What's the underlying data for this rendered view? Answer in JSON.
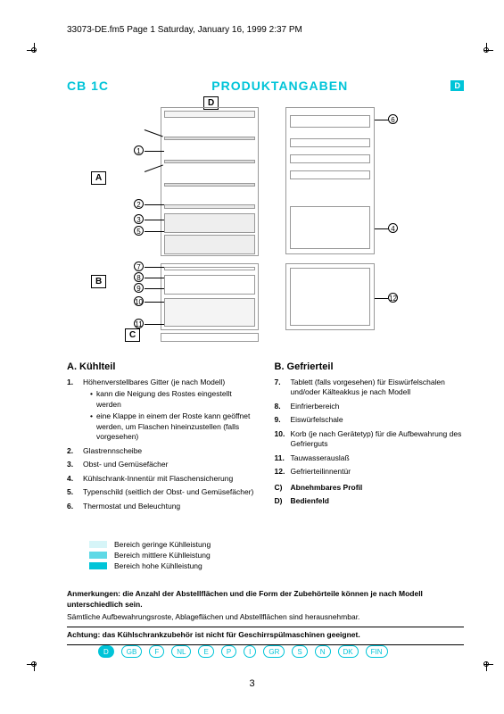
{
  "header": "33073-DE.fm5  Page 1  Saturday, January 16, 1999  2:37 PM",
  "model": "CB 1C",
  "title": "PRODUKTANGABEN",
  "badge": "D",
  "diagram": {
    "labels": {
      "A": "A",
      "B": "B",
      "C": "C",
      "D": "D"
    },
    "callouts": [
      "1",
      "2",
      "3",
      "4",
      "5",
      "6",
      "7",
      "8",
      "9",
      "10",
      "11",
      "12"
    ]
  },
  "sectionA": {
    "heading": "A.    Kühlteil",
    "items": [
      {
        "n": "1.",
        "t": "Höhenverstellbares Gitter (je nach Modell)",
        "sub": [
          "kann die Neigung des Rostes eingestellt werden",
          "eine Klappe in einem der Roste kann geöffnet werden, um Flaschen hineinzustellen (falls vorgesehen)"
        ]
      },
      {
        "n": "2.",
        "t": "Glastrennscheibe"
      },
      {
        "n": "3.",
        "t": "Obst- und Gemüsefächer"
      },
      {
        "n": "4.",
        "t": "Kühlschrank-Innentür mit Flaschensicherung"
      },
      {
        "n": "5.",
        "t": "Typenschild (seitlich der Obst- und Gemüsefächer)"
      },
      {
        "n": "6.",
        "t": "Thermostat und Beleuchtung"
      }
    ]
  },
  "sectionB": {
    "heading": "B.    Gefrierteil",
    "items": [
      {
        "n": "7.",
        "t": "Tablett (falls vorgesehen) für Eiswürfelschalen und/oder Kälteakkus je nach Modell"
      },
      {
        "n": "8.",
        "t": "Einfrierbereich"
      },
      {
        "n": "9.",
        "t": "Eiswürfelschale"
      },
      {
        "n": "10.",
        "t": "Korb (je nach Gerätetyp) für die Aufbewahrung des Gefrierguts"
      },
      {
        "n": "11.",
        "t": "Tauwasserauslaß"
      },
      {
        "n": "12.",
        "t": "Gefrierteilinnentür"
      }
    ],
    "extra": [
      {
        "n": "C)",
        "t": "Abnehmbares Profil"
      },
      {
        "n": "D)",
        "t": "Bedienfeld"
      }
    ]
  },
  "legend": [
    {
      "color": "#d6f5f8",
      "t": "Bereich geringe Kühlleistung"
    },
    {
      "color": "#5fd9e6",
      "t": "Bereich mittlere Kühlleistung"
    },
    {
      "color": "#00c4d8",
      "t": "Bereich hohe Kühlleistung"
    }
  ],
  "notes": {
    "l1": "Anmerkungen: die Anzahl der Abstellflächen und die Form der Zubehörteile können je nach Modell unterschiedlich sein.",
    "l2": "Sämtliche Aufbewahrungsroste, Ablageflächen und Abstellflächen sind herausnehmbar.",
    "l3": "Achtung: das Kühlschrankzubehör ist nicht für Geschirrspülmaschinen geeignet."
  },
  "langs": [
    "D",
    "GB",
    "F",
    "NL",
    "E",
    "P",
    "I",
    "GR",
    "S",
    "N",
    "DK",
    "FIN"
  ],
  "pagenum": "3",
  "colors": {
    "accent": "#00c4d8"
  }
}
